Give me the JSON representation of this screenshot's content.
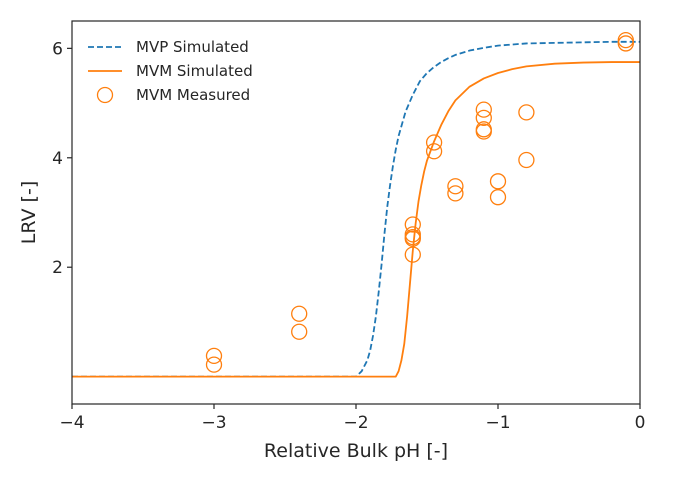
{
  "chart_data": {
    "type": "scatter",
    "xlabel": "Relative Bulk pH [-]",
    "ylabel": "LRV [-]",
    "xlim": [
      -4,
      0
    ],
    "ylim": [
      -0.5,
      6.5
    ],
    "xticks": [
      -4,
      -3,
      -2,
      -1,
      0
    ],
    "xtick_labels": [
      "−4",
      "−3",
      "−2",
      "−1",
      "0"
    ],
    "yticks": [
      2,
      4,
      6
    ],
    "ytick_labels": [
      "2",
      "4",
      "6"
    ],
    "grid": false,
    "legend_position": "top-left",
    "series": [
      {
        "name": "MVP Simulated",
        "kind": "dashed-line",
        "color": "#1f77b4",
        "x": [
          -4.0,
          -2.0,
          -1.96,
          -1.92,
          -1.9,
          -1.88,
          -1.86,
          -1.84,
          -1.82,
          -1.8,
          -1.78,
          -1.76,
          -1.74,
          -1.72,
          -1.7,
          -1.65,
          -1.6,
          -1.55,
          -1.5,
          -1.45,
          -1.4,
          -1.35,
          -1.3,
          -1.2,
          -1.1,
          -1.0,
          -0.9,
          -0.8,
          -0.6,
          -0.4,
          -0.2,
          -0.1,
          0.0
        ],
        "y": [
          0.0,
          0.0,
          0.1,
          0.3,
          0.48,
          0.75,
          1.1,
          1.55,
          2.05,
          2.6,
          3.1,
          3.5,
          3.85,
          4.15,
          4.4,
          4.85,
          5.15,
          5.4,
          5.55,
          5.66,
          5.75,
          5.82,
          5.88,
          5.96,
          6.01,
          6.05,
          6.07,
          6.09,
          6.1,
          6.11,
          6.12,
          6.12,
          6.12
        ]
      },
      {
        "name": "MVM Simulated",
        "kind": "line",
        "color": "#ff7f0e",
        "x": [
          -4.0,
          -1.72,
          -1.7,
          -1.68,
          -1.66,
          -1.64,
          -1.62,
          -1.6,
          -1.58,
          -1.56,
          -1.54,
          -1.52,
          -1.5,
          -1.45,
          -1.4,
          -1.35,
          -1.3,
          -1.2,
          -1.1,
          -1.0,
          -0.9,
          -0.8,
          -0.6,
          -0.4,
          -0.2,
          0.0
        ],
        "y": [
          0.0,
          0.0,
          0.1,
          0.3,
          0.6,
          1.1,
          1.7,
          2.3,
          2.8,
          3.2,
          3.5,
          3.75,
          3.95,
          4.3,
          4.6,
          4.85,
          5.05,
          5.3,
          5.45,
          5.55,
          5.62,
          5.67,
          5.72,
          5.74,
          5.75,
          5.75
        ]
      },
      {
        "name": "MVM Measured",
        "kind": "open-circles",
        "color": "#ff7f0e",
        "x": [
          -3.0,
          -3.0,
          -2.4,
          -2.4,
          -1.6,
          -1.6,
          -1.6,
          -1.6,
          -1.6,
          -1.45,
          -1.45,
          -1.3,
          -1.3,
          -1.1,
          -1.1,
          -1.1,
          -1.1,
          -1.0,
          -1.0,
          -0.8,
          -0.8,
          -0.1,
          -0.1
        ],
        "y": [
          0.38,
          0.22,
          1.15,
          0.82,
          2.78,
          2.6,
          2.55,
          2.52,
          2.23,
          4.28,
          4.12,
          3.48,
          3.35,
          4.88,
          4.73,
          4.52,
          4.48,
          3.57,
          3.28,
          4.83,
          3.96,
          6.15,
          6.09
        ]
      }
    ]
  }
}
